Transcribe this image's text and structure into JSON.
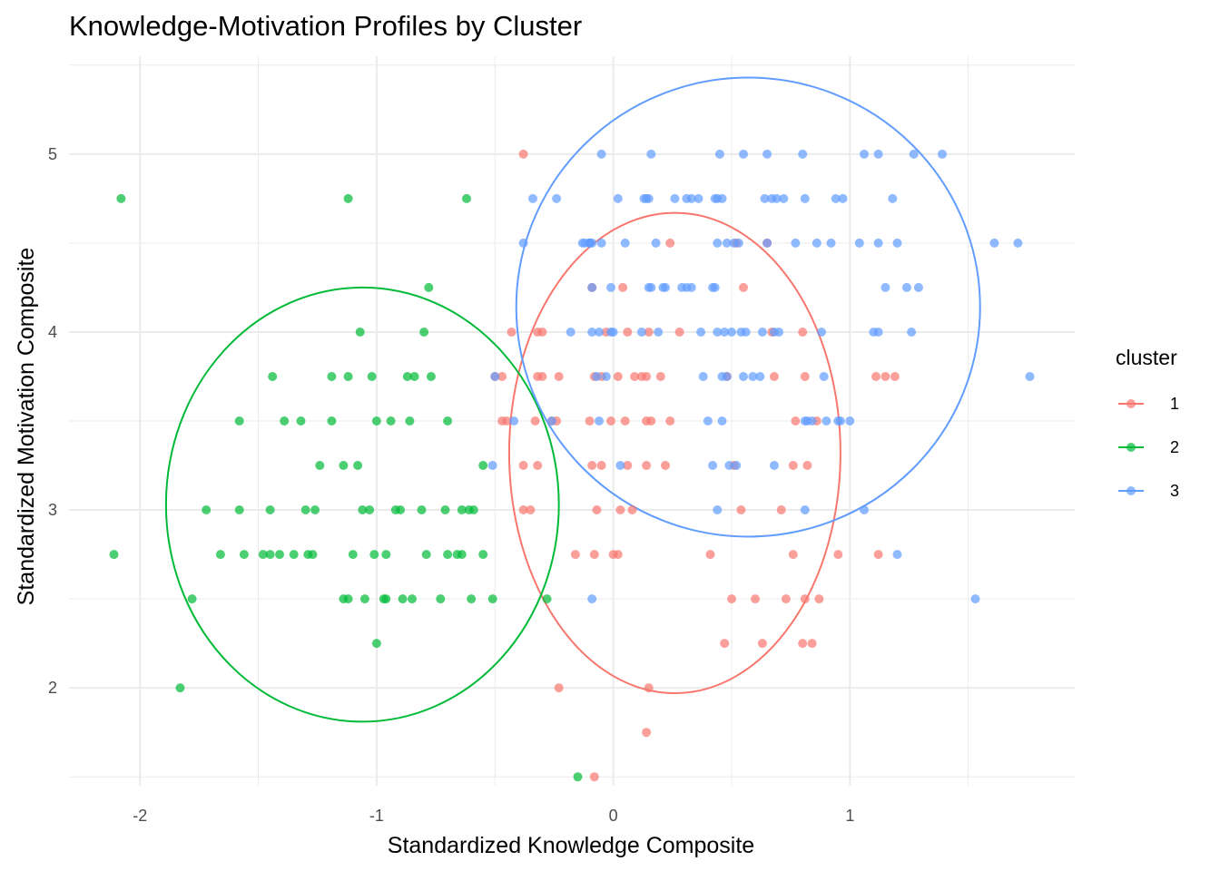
{
  "chart_data": {
    "type": "scatter",
    "title": "Knowledge-Motivation Profiles by Cluster",
    "xlabel": "Standardized Knowledge Composite",
    "ylabel": "Standardized Motivation Composite",
    "xlim": [
      -2.3,
      1.95
    ],
    "ylim": [
      1.45,
      5.55
    ],
    "x_ticks": [
      -2,
      -1,
      0,
      1
    ],
    "x_tick_labels": [
      "-2",
      "-1",
      "0",
      "1"
    ],
    "y_ticks": [
      2,
      3,
      4,
      5
    ],
    "y_tick_labels": [
      "2",
      "3",
      "4",
      "5"
    ],
    "grid": true,
    "legend": {
      "title": "cluster",
      "position": "right"
    },
    "series": [
      {
        "name": "1",
        "color": "#F8766D",
        "points": [
          [
            -0.38,
            5.0
          ],
          [
            0.24,
            4.5
          ],
          [
            0.52,
            4.5
          ],
          [
            0.65,
            4.5
          ],
          [
            -0.09,
            4.25
          ],
          [
            0.04,
            4.25
          ],
          [
            0.55,
            4.25
          ],
          [
            -0.43,
            4.0
          ],
          [
            -0.32,
            4.0
          ],
          [
            -0.3,
            4.0
          ],
          [
            -0.03,
            4.0
          ],
          [
            0.06,
            4.0
          ],
          [
            0.15,
            4.0
          ],
          [
            0.28,
            4.0
          ],
          [
            0.67,
            4.0
          ],
          [
            0.8,
            4.0
          ],
          [
            -0.5,
            3.75
          ],
          [
            -0.47,
            3.75
          ],
          [
            -0.32,
            3.75
          ],
          [
            -0.3,
            3.75
          ],
          [
            -0.23,
            3.75
          ],
          [
            -0.08,
            3.75
          ],
          [
            -0.05,
            3.75
          ],
          [
            0.02,
            3.75
          ],
          [
            0.09,
            3.75
          ],
          [
            0.12,
            3.75
          ],
          [
            0.14,
            3.75
          ],
          [
            0.2,
            3.75
          ],
          [
            0.48,
            3.75
          ],
          [
            0.68,
            3.75
          ],
          [
            0.81,
            3.75
          ],
          [
            1.11,
            3.75
          ],
          [
            1.15,
            3.75
          ],
          [
            1.19,
            3.75
          ],
          [
            -0.47,
            3.5
          ],
          [
            -0.45,
            3.5
          ],
          [
            -0.33,
            3.5
          ],
          [
            -0.26,
            3.5
          ],
          [
            -0.24,
            3.5
          ],
          [
            -0.1,
            3.5
          ],
          [
            -0.01,
            3.5
          ],
          [
            0.05,
            3.5
          ],
          [
            0.14,
            3.5
          ],
          [
            0.16,
            3.5
          ],
          [
            0.24,
            3.5
          ],
          [
            0.77,
            3.5
          ],
          [
            0.86,
            3.5
          ],
          [
            -0.38,
            3.25
          ],
          [
            -0.32,
            3.25
          ],
          [
            -0.09,
            3.25
          ],
          [
            -0.05,
            3.25
          ],
          [
            0.06,
            3.25
          ],
          [
            0.14,
            3.25
          ],
          [
            0.22,
            3.25
          ],
          [
            0.51,
            3.25
          ],
          [
            0.76,
            3.25
          ],
          [
            0.82,
            3.25
          ],
          [
            -0.38,
            3.0
          ],
          [
            -0.35,
            3.0
          ],
          [
            -0.07,
            3.0
          ],
          [
            0.03,
            3.0
          ],
          [
            0.08,
            3.0
          ],
          [
            0.54,
            3.0
          ],
          [
            0.71,
            3.0
          ],
          [
            -0.16,
            2.75
          ],
          [
            -0.08,
            2.75
          ],
          [
            0.0,
            2.75
          ],
          [
            0.02,
            2.75
          ],
          [
            0.41,
            2.75
          ],
          [
            0.76,
            2.75
          ],
          [
            0.95,
            2.75
          ],
          [
            1.12,
            2.75
          ],
          [
            0.5,
            2.5
          ],
          [
            0.6,
            2.5
          ],
          [
            0.73,
            2.5
          ],
          [
            0.81,
            2.5
          ],
          [
            0.87,
            2.5
          ],
          [
            0.47,
            2.25
          ],
          [
            0.63,
            2.25
          ],
          [
            0.8,
            2.25
          ],
          [
            0.84,
            2.25
          ],
          [
            -0.23,
            2.0
          ],
          [
            0.15,
            2.0
          ],
          [
            0.14,
            1.75
          ],
          [
            -0.08,
            1.5
          ]
        ]
      },
      {
        "name": "2",
        "color": "#00BA38",
        "points": [
          [
            -2.08,
            4.75
          ],
          [
            -1.12,
            4.75
          ],
          [
            -0.62,
            4.75
          ],
          [
            -0.78,
            4.25
          ],
          [
            -1.07,
            4.0
          ],
          [
            -0.8,
            4.0
          ],
          [
            -1.44,
            3.75
          ],
          [
            -1.19,
            3.75
          ],
          [
            -1.12,
            3.75
          ],
          [
            -1.02,
            3.75
          ],
          [
            -0.87,
            3.75
          ],
          [
            -0.84,
            3.75
          ],
          [
            -0.77,
            3.75
          ],
          [
            -1.58,
            3.5
          ],
          [
            -1.39,
            3.5
          ],
          [
            -1.32,
            3.5
          ],
          [
            -1.19,
            3.5
          ],
          [
            -1.0,
            3.5
          ],
          [
            -0.94,
            3.5
          ],
          [
            -0.86,
            3.5
          ],
          [
            -0.7,
            3.5
          ],
          [
            -1.24,
            3.25
          ],
          [
            -1.14,
            3.25
          ],
          [
            -1.08,
            3.25
          ],
          [
            -0.55,
            3.25
          ],
          [
            -1.72,
            3.0
          ],
          [
            -1.58,
            3.0
          ],
          [
            -1.45,
            3.0
          ],
          [
            -1.3,
            3.0
          ],
          [
            -1.26,
            3.0
          ],
          [
            -1.06,
            3.0
          ],
          [
            -1.03,
            3.0
          ],
          [
            -0.92,
            3.0
          ],
          [
            -0.9,
            3.0
          ],
          [
            -0.81,
            3.0
          ],
          [
            -0.71,
            3.0
          ],
          [
            -0.64,
            3.0
          ],
          [
            -0.61,
            3.0
          ],
          [
            -0.59,
            3.0
          ],
          [
            -2.11,
            2.75
          ],
          [
            -1.66,
            2.75
          ],
          [
            -1.56,
            2.75
          ],
          [
            -1.48,
            2.75
          ],
          [
            -1.45,
            2.75
          ],
          [
            -1.41,
            2.75
          ],
          [
            -1.35,
            2.75
          ],
          [
            -1.29,
            2.75
          ],
          [
            -1.27,
            2.75
          ],
          [
            -1.1,
            2.75
          ],
          [
            -1.01,
            2.75
          ],
          [
            -0.96,
            2.75
          ],
          [
            -0.79,
            2.75
          ],
          [
            -0.7,
            2.75
          ],
          [
            -0.66,
            2.75
          ],
          [
            -0.64,
            2.75
          ],
          [
            -0.55,
            2.75
          ],
          [
            -1.78,
            2.5
          ],
          [
            -1.14,
            2.5
          ],
          [
            -1.12,
            2.5
          ],
          [
            -1.05,
            2.5
          ],
          [
            -0.97,
            2.5
          ],
          [
            -0.96,
            2.5
          ],
          [
            -0.89,
            2.5
          ],
          [
            -0.85,
            2.5
          ],
          [
            -0.73,
            2.5
          ],
          [
            -0.6,
            2.5
          ],
          [
            -0.51,
            2.5
          ],
          [
            -0.28,
            2.5
          ],
          [
            -1.0,
            2.25
          ],
          [
            -1.83,
            2.0
          ],
          [
            -0.15,
            1.5
          ]
        ]
      },
      {
        "name": "3",
        "color": "#619CFF",
        "points": [
          [
            -0.05,
            5.0
          ],
          [
            0.16,
            5.0
          ],
          [
            0.45,
            5.0
          ],
          [
            0.55,
            5.0
          ],
          [
            0.65,
            5.0
          ],
          [
            0.8,
            5.0
          ],
          [
            1.06,
            5.0
          ],
          [
            1.12,
            5.0
          ],
          [
            1.27,
            5.0
          ],
          [
            1.39,
            5.0
          ],
          [
            -0.34,
            4.75
          ],
          [
            -0.24,
            4.75
          ],
          [
            0.02,
            4.75
          ],
          [
            0.13,
            4.75
          ],
          [
            0.14,
            4.75
          ],
          [
            0.15,
            4.75
          ],
          [
            0.26,
            4.75
          ],
          [
            0.31,
            4.75
          ],
          [
            0.33,
            4.75
          ],
          [
            0.36,
            4.75
          ],
          [
            0.43,
            4.75
          ],
          [
            0.44,
            4.75
          ],
          [
            0.46,
            4.75
          ],
          [
            0.64,
            4.75
          ],
          [
            0.67,
            4.75
          ],
          [
            0.69,
            4.75
          ],
          [
            0.72,
            4.75
          ],
          [
            0.81,
            4.75
          ],
          [
            0.94,
            4.75
          ],
          [
            0.97,
            4.75
          ],
          [
            1.18,
            4.75
          ],
          [
            -0.38,
            4.5
          ],
          [
            -0.13,
            4.5
          ],
          [
            -0.12,
            4.5
          ],
          [
            -0.1,
            4.5
          ],
          [
            -0.1,
            4.5
          ],
          [
            -0.1,
            4.5
          ],
          [
            -0.1,
            4.5
          ],
          [
            -0.09,
            4.5
          ],
          [
            -0.05,
            4.5
          ],
          [
            0.05,
            4.5
          ],
          [
            0.18,
            4.5
          ],
          [
            0.44,
            4.5
          ],
          [
            0.48,
            4.5
          ],
          [
            0.51,
            4.5
          ],
          [
            0.53,
            4.5
          ],
          [
            0.65,
            4.5
          ],
          [
            0.77,
            4.5
          ],
          [
            0.86,
            4.5
          ],
          [
            0.92,
            4.5
          ],
          [
            1.04,
            4.5
          ],
          [
            1.12,
            4.5
          ],
          [
            1.2,
            4.5
          ],
          [
            1.61,
            4.5
          ],
          [
            1.71,
            4.5
          ],
          [
            -0.09,
            4.25
          ],
          [
            -0.01,
            4.25
          ],
          [
            0.15,
            4.25
          ],
          [
            0.16,
            4.25
          ],
          [
            0.21,
            4.25
          ],
          [
            0.22,
            4.25
          ],
          [
            0.29,
            4.25
          ],
          [
            0.31,
            4.25
          ],
          [
            0.33,
            4.25
          ],
          [
            0.42,
            4.25
          ],
          [
            0.43,
            4.25
          ],
          [
            1.15,
            4.25
          ],
          [
            1.24,
            4.25
          ],
          [
            1.29,
            4.25
          ],
          [
            -0.18,
            4.0
          ],
          [
            -0.09,
            4.0
          ],
          [
            -0.06,
            4.0
          ],
          [
            -0.01,
            4.0
          ],
          [
            0.0,
            4.0
          ],
          [
            0.12,
            4.0
          ],
          [
            0.19,
            4.0
          ],
          [
            0.37,
            4.0
          ],
          [
            0.44,
            4.0
          ],
          [
            0.47,
            4.0
          ],
          [
            0.5,
            4.0
          ],
          [
            0.54,
            4.0
          ],
          [
            0.56,
            4.0
          ],
          [
            0.63,
            4.0
          ],
          [
            0.68,
            4.0
          ],
          [
            0.7,
            4.0
          ],
          [
            0.88,
            4.0
          ],
          [
            1.1,
            4.0
          ],
          [
            1.12,
            4.0
          ],
          [
            1.26,
            4.0
          ],
          [
            -0.5,
            3.75
          ],
          [
            -0.07,
            3.75
          ],
          [
            -0.03,
            3.75
          ],
          [
            0.38,
            3.75
          ],
          [
            0.46,
            3.75
          ],
          [
            0.48,
            3.75
          ],
          [
            0.55,
            3.75
          ],
          [
            0.59,
            3.75
          ],
          [
            0.62,
            3.75
          ],
          [
            0.89,
            3.75
          ],
          [
            1.76,
            3.75
          ],
          [
            -0.42,
            3.5
          ],
          [
            -0.26,
            3.5
          ],
          [
            -0.06,
            3.5
          ],
          [
            0.4,
            3.5
          ],
          [
            0.46,
            3.5
          ],
          [
            0.81,
            3.5
          ],
          [
            0.82,
            3.5
          ],
          [
            0.84,
            3.5
          ],
          [
            0.9,
            3.5
          ],
          [
            0.95,
            3.5
          ],
          [
            0.96,
            3.5
          ],
          [
            1.0,
            3.5
          ],
          [
            -0.51,
            3.25
          ],
          [
            0.03,
            3.25
          ],
          [
            0.42,
            3.25
          ],
          [
            0.49,
            3.25
          ],
          [
            0.52,
            3.25
          ],
          [
            0.68,
            3.25
          ],
          [
            0.44,
            3.0
          ],
          [
            0.81,
            3.0
          ],
          [
            1.06,
            3.0
          ],
          [
            1.2,
            2.75
          ],
          [
            -0.09,
            2.5
          ],
          [
            1.53,
            2.5
          ]
        ]
      }
    ],
    "ellipses": [
      {
        "series": "1",
        "cx": 0.26,
        "cy": 3.32,
        "rx": 0.7,
        "ry": 1.35
      },
      {
        "series": "2",
        "cx": -1.06,
        "cy": 3.03,
        "rx": 0.83,
        "ry": 1.22
      },
      {
        "series": "3",
        "cx": 0.57,
        "cy": 4.14,
        "rx": 0.98,
        "ry": 1.29
      }
    ]
  }
}
